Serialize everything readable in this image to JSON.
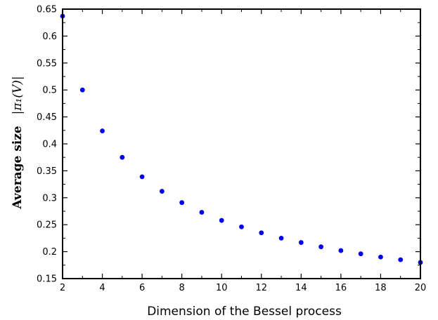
{
  "chart_data": {
    "type": "scatter",
    "xlabel": "Dimension of the Bessel process",
    "ylabel_text": "Average size",
    "ylabel_math": "|π₁(V)|",
    "xlim": [
      2,
      20
    ],
    "ylim": [
      0.15,
      0.65
    ],
    "xticks": [
      2,
      4,
      6,
      8,
      10,
      12,
      14,
      16,
      18,
      20
    ],
    "yticks": [
      0.15,
      0.2,
      0.25,
      0.3,
      0.35,
      0.4,
      0.45,
      0.5,
      0.55,
      0.6,
      0.65
    ],
    "ytick_labels": [
      "0.15",
      "0.2",
      "0.25",
      "0.3",
      "0.35",
      "0.4",
      "0.45",
      "0.5",
      "0.55",
      "0.6",
      "0.65"
    ],
    "marker_color": "#0000ee",
    "grid": false,
    "series": [
      {
        "x": [
          2,
          3,
          4,
          5,
          6,
          7,
          8,
          9,
          10,
          11,
          12,
          13,
          14,
          15,
          16,
          17,
          18,
          19,
          20
        ],
        "y": [
          0.637,
          0.5,
          0.424,
          0.375,
          0.339,
          0.312,
          0.291,
          0.273,
          0.258,
          0.246,
          0.235,
          0.225,
          0.217,
          0.209,
          0.202,
          0.196,
          0.19,
          0.185,
          0.18
        ]
      }
    ]
  }
}
